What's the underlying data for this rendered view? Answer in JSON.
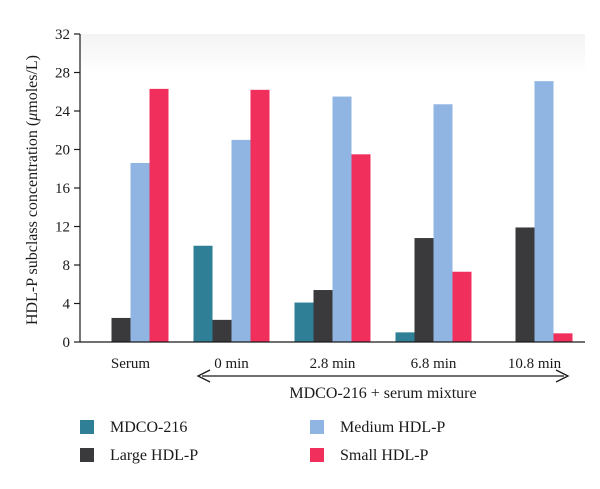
{
  "chart_data": {
    "type": "bar",
    "ylabel_prefix": "HDL-P subclass concentration (",
    "ylabel_mu": "μ",
    "ylabel_suffix": "moles/L)",
    "xlabel": "MDCO-216 + serum mixture",
    "ylim": [
      0,
      32
    ],
    "yticks": [
      0,
      4,
      8,
      12,
      16,
      20,
      24,
      28,
      32
    ],
    "categories": [
      "Serum",
      "0 min",
      "2.8 min",
      "6.8 min",
      "10.8 min"
    ],
    "legend_placement": "bottom",
    "series": [
      {
        "name": "MDCO-216",
        "color": "#2f7f96",
        "values": [
          0,
          10.0,
          4.1,
          1.0,
          0
        ]
      },
      {
        "name": "Large HDL-P",
        "color": "#3a3a3c",
        "values": [
          2.5,
          2.3,
          5.4,
          10.8,
          11.9
        ]
      },
      {
        "name": "Medium HDL-P",
        "color": "#90b5e2",
        "values": [
          18.6,
          21.0,
          25.5,
          24.7,
          27.1
        ]
      },
      {
        "name": "Small HDL-P",
        "color": "#f02f5c",
        "values": [
          26.3,
          26.2,
          19.5,
          7.3,
          0.9
        ]
      }
    ]
  }
}
